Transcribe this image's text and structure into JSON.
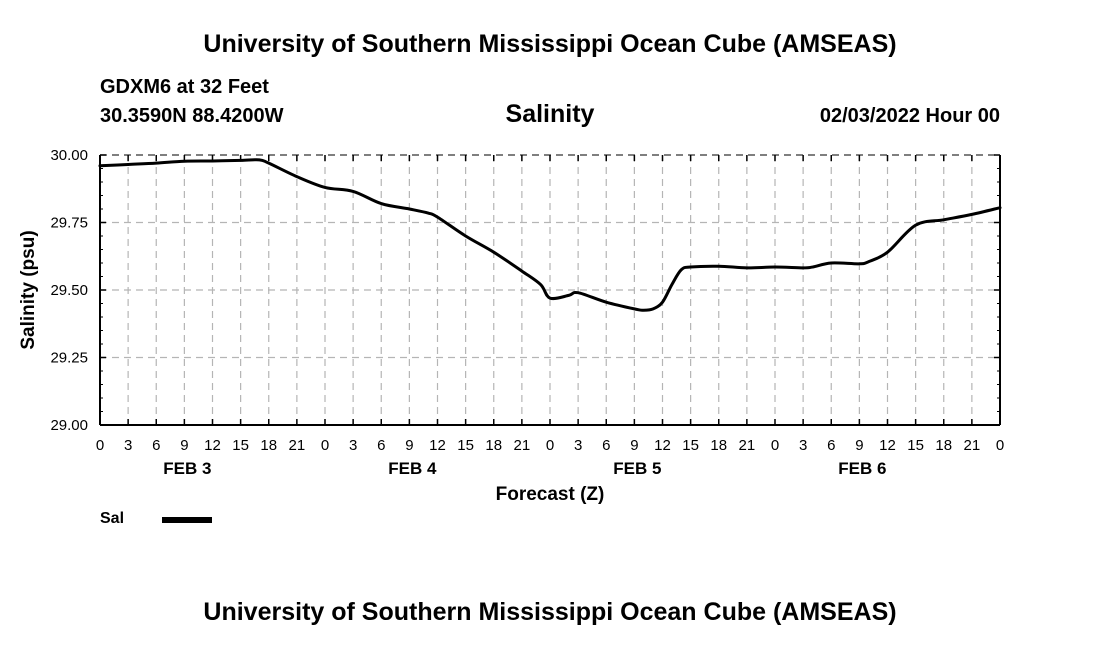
{
  "header": {
    "title": "University of Southern Mississippi Ocean Cube (AMSEAS)",
    "station": "GDXM6 at 32 Feet",
    "coords": "30.3590N  88.4200W",
    "datetime": "02/03/2022 Hour 00"
  },
  "footer": {
    "title": "University of Southern Mississippi Ocean Cube (AMSEAS)"
  },
  "chart_data": {
    "type": "line",
    "title": "Salinity",
    "xlabel": "Forecast (Z)",
    "ylabel": "Salinity (psu)",
    "xlim": [
      0,
      96
    ],
    "ylim": [
      29.0,
      30.0
    ],
    "grid": true,
    "x_tick_labels": [
      "0",
      "3",
      "6",
      "9",
      "12",
      "15",
      "18",
      "21",
      "0",
      "3",
      "6",
      "9",
      "12",
      "15",
      "18",
      "21",
      "0",
      "3",
      "6",
      "9",
      "12",
      "15",
      "18",
      "21",
      "0",
      "3",
      "6",
      "9",
      "12",
      "15",
      "18",
      "21",
      "0"
    ],
    "y_ticks": [
      29.0,
      29.25,
      29.5,
      29.75,
      30.0
    ],
    "y_tick_labels": [
      "29.00",
      "29.25",
      "29.50",
      "29.75",
      "30.00"
    ],
    "day_labels": [
      {
        "label": "FEB 3",
        "hour": 9
      },
      {
        "label": "FEB 4",
        "hour": 33
      },
      {
        "label": "FEB 5",
        "hour": 57
      },
      {
        "label": "FEB 6",
        "hour": 81
      }
    ],
    "series": [
      {
        "name": "Sal",
        "x": [
          0,
          3,
          6,
          9,
          12,
          15,
          17,
          18,
          21,
          24,
          27,
          30,
          33,
          35,
          36,
          39,
          42,
          45,
          47,
          48,
          50,
          51,
          54,
          57,
          58,
          59,
          60,
          61,
          62,
          63,
          66,
          69,
          72,
          75,
          76,
          78,
          81,
          82,
          84,
          87,
          90,
          93,
          96
        ],
        "values": [
          29.96,
          29.965,
          29.97,
          29.977,
          29.978,
          29.98,
          29.982,
          29.97,
          29.92,
          29.88,
          29.865,
          29.82,
          29.8,
          29.785,
          29.77,
          29.7,
          29.64,
          29.57,
          29.52,
          29.47,
          29.48,
          29.49,
          29.455,
          29.43,
          29.425,
          29.43,
          29.455,
          29.52,
          29.575,
          29.585,
          29.588,
          29.582,
          29.585,
          29.582,
          29.585,
          29.6,
          29.597,
          29.605,
          29.64,
          29.74,
          29.76,
          29.78,
          29.805
        ]
      }
    ],
    "legend": [
      {
        "label": "Sal",
        "position": "bottom-left"
      }
    ]
  }
}
